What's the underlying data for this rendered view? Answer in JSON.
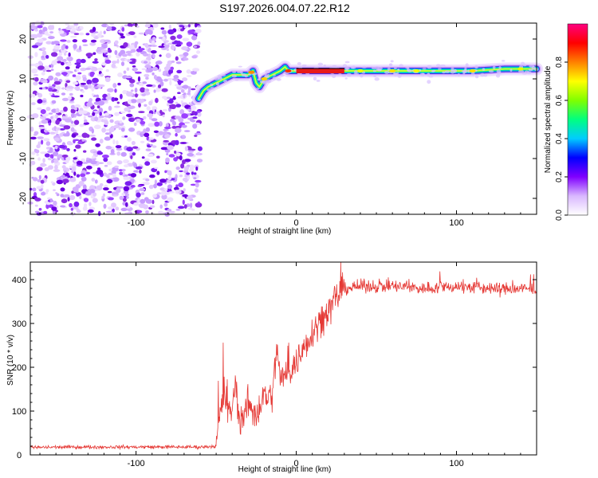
{
  "title": "S197.2026.004.07.22.R12",
  "chart_data": [
    {
      "type": "heatmap",
      "name": "spectrogram",
      "xlabel": "Height of straight line (km)",
      "ylabel": "Frequency (Hz)",
      "xlim": [
        -166,
        150
      ],
      "ylim": [
        -24,
        24
      ],
      "x_ticks": [
        -100,
        0,
        100
      ],
      "x_tick_labels": [
        "-100",
        "0",
        "100"
      ],
      "y_ticks": [
        -20,
        -10,
        0,
        10,
        20
      ],
      "y_tick_labels": [
        "-20",
        "-10",
        "0",
        "10",
        "20"
      ],
      "noise_region_x": [
        -166,
        -60
      ],
      "signal_trace": {
        "x": [
          -61,
          -58,
          -55,
          -50,
          -45,
          -40,
          -35,
          -30,
          -27,
          -25,
          -23,
          -20,
          -15,
          -10,
          -7,
          -5,
          0,
          10,
          20,
          30,
          50,
          70,
          90,
          110,
          130,
          150
        ],
        "y": [
          5,
          7,
          8,
          9,
          10,
          11,
          11,
          11,
          12,
          9,
          8,
          10,
          11,
          12,
          13,
          12,
          12,
          12,
          12,
          12,
          12,
          12,
          12,
          12,
          12.5,
          12.5
        ]
      },
      "fitted_line": {
        "x": [
          0,
          30
        ],
        "y": [
          12,
          12
        ]
      },
      "colorbar": {
        "label": "Normalized spectral amplitude",
        "range": [
          0,
          1
        ],
        "ticks": [
          0.0,
          0.2,
          0.4,
          0.6,
          0.8
        ],
        "tick_labels": [
          "0.0",
          "0.2",
          "0.4",
          "0.6",
          "0.8"
        ],
        "colors": [
          "#ffffff",
          "#d9b8ff",
          "#8000ff",
          "#0000ff",
          "#00ccff",
          "#00ff80",
          "#80ff00",
          "#ffff00",
          "#ff8000",
          "#ff0000",
          "#ff0080"
        ]
      }
    },
    {
      "type": "line",
      "name": "snr",
      "xlabel": "Height of straight line (km)",
      "ylabel": "SNR (10 * v/v)",
      "xlim": [
        -166,
        150
      ],
      "ylim": [
        0,
        440
      ],
      "x_ticks": [
        -100,
        0,
        100
      ],
      "x_tick_labels": [
        "-100",
        "0",
        "100"
      ],
      "y_ticks": [
        0,
        100,
        200,
        300,
        400
      ],
      "y_tick_labels": [
        "0",
        "100",
        "200",
        "300",
        "400"
      ],
      "series": [
        {
          "name": "SNR",
          "color": "#e53935",
          "x": [
            -166,
            -140,
            -120,
            -100,
            -80,
            -60,
            -50,
            -48,
            -45,
            -42,
            -40,
            -38,
            -35,
            -30,
            -25,
            -20,
            -15,
            -12,
            -10,
            -5,
            0,
            5,
            10,
            15,
            20,
            25,
            30,
            40,
            60,
            80,
            100,
            120,
            150
          ],
          "y": [
            17,
            18,
            18,
            18,
            18,
            18,
            20,
            80,
            140,
            90,
            110,
            160,
            70,
            120,
            90,
            140,
            130,
            250,
            170,
            190,
            210,
            250,
            280,
            310,
            330,
            360,
            380,
            385,
            385,
            380,
            385,
            380,
            378
          ]
        }
      ]
    }
  ]
}
